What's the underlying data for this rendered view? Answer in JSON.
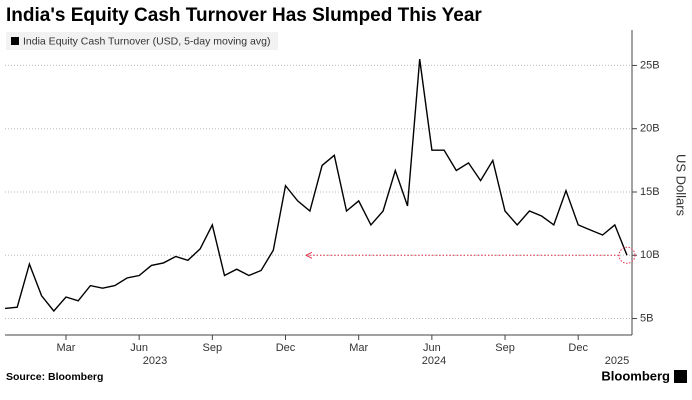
{
  "chart_data": {
    "type": "line",
    "title": "India's Equity Cash Turnover Has Slumped This Year",
    "y_axis_label": "US Dollars",
    "source": "Source: Bloomberg",
    "brand": "Bloomberg",
    "year_labels": [
      "2023",
      "2024",
      "2025"
    ],
    "categories": [
      null,
      null,
      null,
      null,
      null,
      "Mar",
      null,
      null,
      null,
      null,
      null,
      "Jun",
      null,
      null,
      null,
      null,
      null,
      "Sep",
      null,
      null,
      null,
      null,
      null,
      "Dec",
      null,
      null,
      null,
      null,
      null,
      "Mar",
      null,
      null,
      null,
      null,
      null,
      "Jun",
      null,
      null,
      null,
      null,
      null,
      "Sep",
      null,
      null,
      null,
      null,
      null,
      "Dec",
      null,
      null,
      null,
      null
    ],
    "series": [
      {
        "name": "India Equity Cash Turnover (USD, 5-day moving avg)",
        "color": "#000000",
        "values": [
          5.8,
          5.9,
          9.3,
          6.8,
          5.6,
          6.7,
          6.4,
          7.6,
          7.4,
          7.6,
          8.2,
          8.4,
          9.2,
          9.4,
          9.9,
          9.6,
          10.5,
          12.4,
          8.4,
          8.9,
          8.4,
          8.8,
          10.4,
          15.5,
          14.3,
          13.5,
          17.1,
          17.9,
          13.5,
          14.3,
          12.4,
          13.5,
          16.7,
          13.9,
          25.5,
          18.3,
          18.3,
          16.7,
          17.3,
          15.9,
          17.5,
          13.5,
          12.4,
          13.5,
          13.1,
          12.4,
          15.1,
          12.4,
          12.0,
          11.6,
          12.4,
          10.0
        ]
      }
    ],
    "ylim": [
      3.7,
      27.8
    ],
    "yticks": [
      {
        "value": 5,
        "label": "5B"
      },
      {
        "value": 10,
        "label": "10B"
      },
      {
        "value": 15,
        "label": "15B"
      },
      {
        "value": 20,
        "label": "20B"
      },
      {
        "value": 25,
        "label": "25B"
      }
    ],
    "grid": true,
    "legend": "top-left",
    "annotation_color": "#e0304a"
  }
}
